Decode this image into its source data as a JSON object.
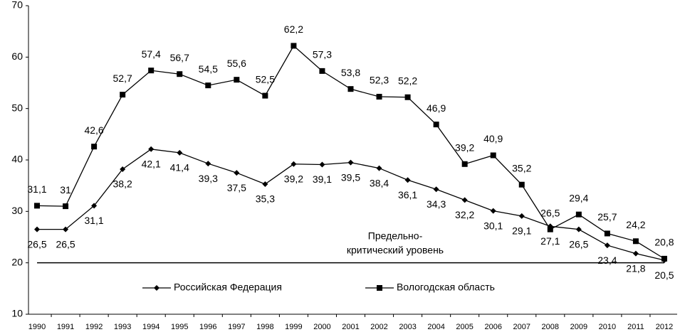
{
  "chart_data": {
    "type": "line",
    "categories": [
      "1990",
      "1991",
      "1992",
      "1993",
      "1994",
      "1995",
      "1996",
      "1997",
      "1998",
      "1999",
      "2000",
      "2001",
      "2002",
      "2003",
      "2004",
      "2005",
      "2006",
      "2007",
      "2008",
      "2009",
      "2010",
      "2011",
      "2012"
    ],
    "series": [
      {
        "name": "Российская Федерация",
        "color": "#000000",
        "marker": "diamond",
        "values": [
          26.5,
          26.5,
          31.1,
          38.2,
          42.1,
          41.4,
          39.3,
          37.5,
          35.3,
          39.2,
          39.1,
          39.5,
          38.4,
          36.1,
          34.3,
          32.2,
          30.1,
          29.1,
          27.1,
          26.5,
          23.4,
          21.8,
          20.5
        ],
        "value_labels": [
          "26,5",
          "26,5",
          "31,1",
          "38,2",
          "42,1",
          "41,4",
          "39,3",
          "37,5",
          "35,3",
          "39,2",
          "39,1",
          "39,5",
          "38,4",
          "36,1",
          "34,3",
          "32,2",
          "30,1",
          "29,1",
          "27,1",
          "26,5",
          "23,4",
          "21,8",
          "20,5"
        ]
      },
      {
        "name": "Вологодская область",
        "color": "#000000",
        "marker": "square",
        "values": [
          31.1,
          31,
          42.6,
          52.7,
          57.4,
          56.7,
          54.5,
          55.6,
          52.5,
          62.2,
          57.3,
          53.8,
          52.3,
          52.2,
          46.9,
          39.2,
          40.9,
          35.2,
          26.5,
          29.4,
          25.7,
          24.2,
          20.8
        ],
        "value_labels": [
          "31,1",
          "31",
          "42,6",
          "52,7",
          "57,4",
          "56,7",
          "54,5",
          "55,6",
          "52,5",
          "62,2",
          "57,3",
          "53,8",
          "52,3",
          "52,2",
          "46,9",
          "39,2",
          "40,9",
          "35,2",
          "26,5",
          "29,4",
          "25,7",
          "24,2",
          "20,8"
        ]
      }
    ],
    "threshold": {
      "value": 20,
      "label": [
        "Предельно-",
        "критический уровень"
      ]
    },
    "ylim": [
      10,
      70
    ],
    "yticks": [
      10,
      20,
      30,
      40,
      50,
      60,
      70
    ],
    "grid": false,
    "legend": "bottom"
  }
}
